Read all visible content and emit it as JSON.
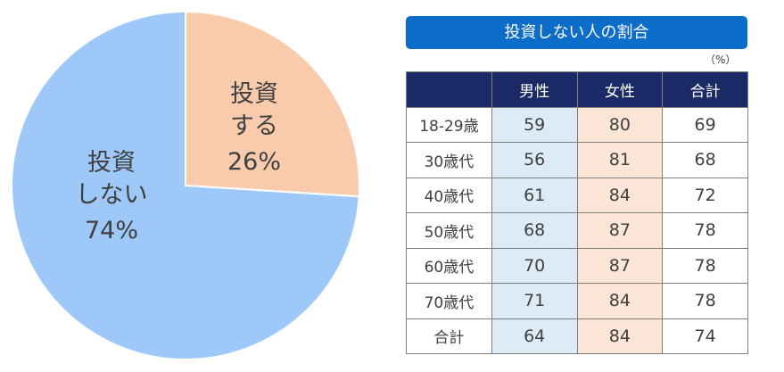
{
  "chart_data": {
    "type": "pie",
    "categories": [
      "投資\nする",
      "投資\nしない"
    ],
    "values": [
      26,
      74
    ],
    "value_labels": [
      "26%",
      "74%"
    ],
    "colors": [
      "#f8cbad",
      "#9dc8f8"
    ]
  },
  "table": {
    "title": "投資しない人の割合",
    "unit": "（%）",
    "headers": [
      "男性",
      "女性",
      "合計"
    ],
    "rows": [
      {
        "label": "18-29歳",
        "values": [
          59,
          80,
          69
        ]
      },
      {
        "label": "30歳代",
        "values": [
          56,
          81,
          68
        ]
      },
      {
        "label": "40歳代",
        "values": [
          61,
          84,
          72
        ]
      },
      {
        "label": "50歳代",
        "values": [
          68,
          87,
          78
        ]
      },
      {
        "label": "60歳代",
        "values": [
          70,
          87,
          78
        ]
      },
      {
        "label": "70歳代",
        "values": [
          71,
          84,
          78
        ]
      },
      {
        "label": "合計",
        "values": [
          64,
          84,
          74
        ]
      }
    ]
  }
}
